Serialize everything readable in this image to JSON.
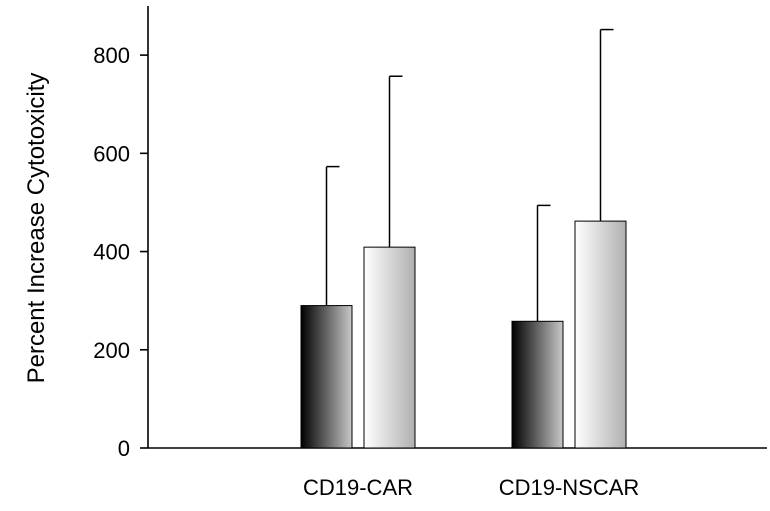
{
  "chart_data": {
    "type": "bar",
    "title": "",
    "xlabel": "",
    "ylabel": "Percent Increase Cytotoxicity",
    "ylim": [
      0,
      900
    ],
    "yticks": [
      0,
      200,
      400,
      600,
      800
    ],
    "categories": [
      "CD19-CAR",
      "CD19-NSCAR"
    ],
    "series": [
      {
        "values": [
          290,
          258
        ],
        "error_upper": [
          573,
          494
        ],
        "gradient": [
          "#000000",
          "#c8c8c8"
        ]
      },
      {
        "values": [
          409,
          462
        ],
        "error_upper": [
          757,
          852
        ],
        "gradient": [
          "#ffffff",
          "#b0b0b0"
        ]
      }
    ],
    "legend": "none",
    "grid": false
  }
}
